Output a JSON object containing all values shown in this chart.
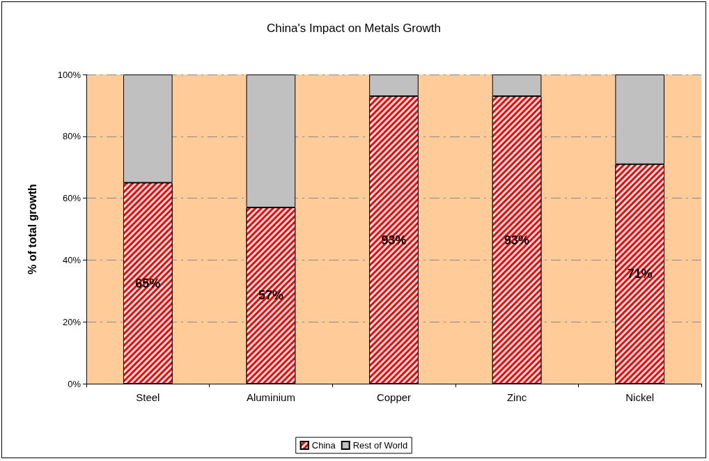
{
  "chart_data": {
    "type": "bar",
    "title": "China's Impact on Metals Growth",
    "ylabel": "% of total growth",
    "categories": [
      "Steel",
      "Aluminium",
      "Copper",
      "Zinc",
      "Nickel"
    ],
    "stacked": true,
    "series": [
      {
        "name": "China",
        "color": "#ff0000",
        "values": [
          65,
          57,
          93,
          93,
          71
        ],
        "value_labels": [
          "65%",
          "57%",
          "93%",
          "93%",
          "71%"
        ]
      },
      {
        "name": "Rest of World",
        "color": "#c0c0c0",
        "values": [
          35,
          43,
          7,
          7,
          29
        ]
      }
    ],
    "ylim": [
      0,
      100
    ],
    "yticks": [
      {
        "value": 0,
        "label": "0%"
      },
      {
        "value": 20,
        "label": "20%"
      },
      {
        "value": 40,
        "label": "40%"
      },
      {
        "value": 60,
        "label": "60%"
      },
      {
        "value": 80,
        "label": "80%"
      },
      {
        "value": 100,
        "label": "100%"
      }
    ],
    "grid": "y",
    "legend": "bottom"
  }
}
